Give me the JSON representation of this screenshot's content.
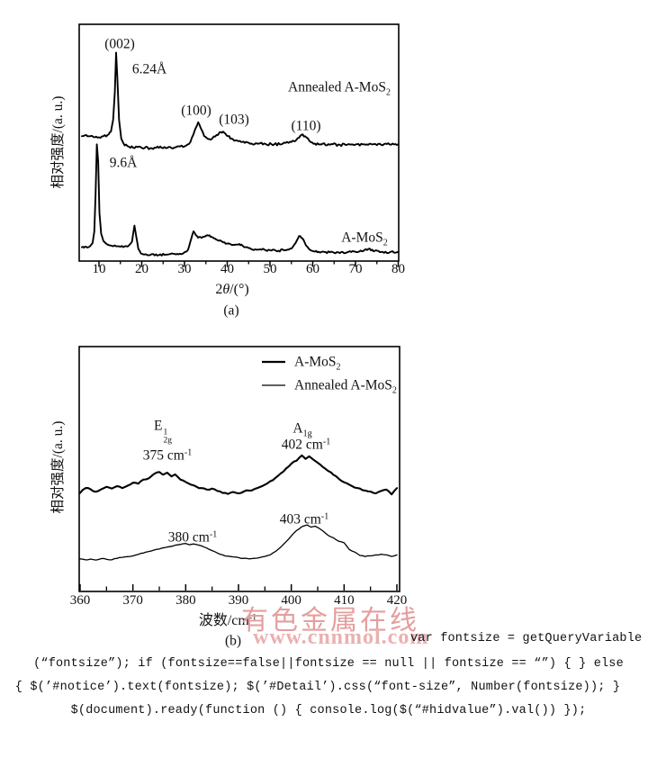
{
  "chart_a": {
    "ylabel": "相对强度/(a. u.)",
    "xlabel_prefix": "2",
    "xlabel_theta": "θ",
    "xlabel_suffix": "/(°)",
    "caption": "(a)",
    "peak_002": "(002)",
    "d_624": "6.24Å",
    "peak_100": "(100)",
    "peak_103": "(103)",
    "peak_110": "(110)",
    "d_96": "9.6Å",
    "annealed_label": "Annealed A-MoS",
    "annealed_sub": "2",
    "amos_label": "A-MoS",
    "amos_sub": "2"
  },
  "chart_b": {
    "ylabel": "相对强度/(a. u.)",
    "xlabel": "波数/cm",
    "xlabel_sup": "-1",
    "caption": "(b)",
    "legend": {
      "item1": "A-MoS",
      "item1_sub": "2",
      "item2": "Annealed A-MoS",
      "item2_sub": "2"
    },
    "e2g_base": "E",
    "e2g_sup": "1",
    "e2g_sub": "2g",
    "a1g_base": "A",
    "a1g_sub": "1g",
    "p375": "375 cm",
    "p402": "402 cm",
    "p380": "380 cm",
    "p403": "403 cm",
    "sup_minus1": "-1"
  },
  "watermark": {
    "line1": "有色金属在线",
    "line2": "www.cnnmol.com",
    "color": "#e59e9e"
  },
  "code_lines": {
    "line1": "var fontsize = getQueryVariable",
    "line2": "(“fontsize”); if (fontsize==false||fontsize == null || fontsize == “”) { } else",
    "line3": "{ $(’#notice’).text(fontsize); $(’#Detail’).css(“font-size”, Number(fontsize)); }",
    "line4": "$(document).ready(function () { console.log($(“#hidvalue”).val()) });"
  },
  "chart_data": [
    {
      "type": "line",
      "xlabel": "2θ/(°)",
      "ylabel": "相对强度/(a.u.)",
      "xlim": [
        5.4,
        80.2
      ],
      "ylim": [
        0,
        100
      ],
      "grid": false,
      "legend_position": "none",
      "x_ticks": [
        10,
        20,
        30,
        40,
        50,
        60,
        70,
        80
      ],
      "x_minor_ticks": [
        15,
        25,
        35,
        45,
        55,
        65,
        75
      ],
      "annotations": [
        "(002)",
        "6.24Å",
        "(100)",
        "(103)",
        "(110)",
        "9.6Å"
      ],
      "series": [
        {
          "name": "Annealed A-MoS₂",
          "points": [
            [
              6,
              53
            ],
            [
              7,
              53.5
            ],
            [
              8,
              53
            ],
            [
              9,
              52.5
            ],
            [
              10,
              52.5
            ],
            [
              11,
              53
            ],
            [
              12,
              53.5
            ],
            [
              12.8,
              55
            ],
            [
              13.3,
              60
            ],
            [
              13.7,
              72
            ],
            [
              14,
              89
            ],
            [
              14.3,
              78
            ],
            [
              14.7,
              60
            ],
            [
              15.2,
              52
            ],
            [
              16,
              49
            ],
            [
              17,
              48.5
            ],
            [
              18,
              48
            ],
            [
              20,
              48
            ],
            [
              22,
              47.8
            ],
            [
              24,
              48
            ],
            [
              26,
              48
            ],
            [
              28,
              48.2
            ],
            [
              30,
              48.6
            ],
            [
              31.4,
              50.5
            ],
            [
              32.4,
              55.5
            ],
            [
              33.2,
              59
            ],
            [
              33.8,
              56.5
            ],
            [
              34.6,
              53
            ],
            [
              35.5,
              51.8
            ],
            [
              36.5,
              52
            ],
            [
              37.5,
              53.5
            ],
            [
              38.5,
              54.8
            ],
            [
              39.3,
              54.5
            ],
            [
              40.2,
              53
            ],
            [
              41,
              52
            ],
            [
              42,
              51.2
            ],
            [
              43.5,
              50.5
            ],
            [
              45,
              50.2
            ],
            [
              47,
              49.8
            ],
            [
              49,
              49.6
            ],
            [
              51,
              49.5
            ],
            [
              53,
              49.8
            ],
            [
              55,
              50.5
            ],
            [
              56.2,
              51.5
            ],
            [
              57.4,
              53.6
            ],
            [
              58.2,
              53
            ],
            [
              59.2,
              51
            ],
            [
              60.5,
              49.8
            ],
            [
              62,
              49.4
            ],
            [
              64,
              49.3
            ],
            [
              66,
              49.4
            ],
            [
              68,
              49.3
            ],
            [
              70,
              49.4
            ],
            [
              72,
              49.5
            ],
            [
              74,
              49.4
            ],
            [
              76,
              49.3
            ],
            [
              78,
              49.4
            ],
            [
              80,
              49.5
            ]
          ]
        },
        {
          "name": "A-MoS₂",
          "points": [
            [
              6,
              5.2
            ],
            [
              6.5,
              5
            ],
            [
              7,
              5.4
            ],
            [
              7.5,
              5.2
            ],
            [
              8,
              5.8
            ],
            [
              8.5,
              7
            ],
            [
              8.9,
              12
            ],
            [
              9.2,
              28
            ],
            [
              9.5,
              49.5
            ],
            [
              9.8,
              42
            ],
            [
              10.1,
              20
            ],
            [
              10.5,
              11
            ],
            [
              11,
              8
            ],
            [
              11.5,
              7
            ],
            [
              12,
              6.3
            ],
            [
              13,
              5.8
            ],
            [
              14,
              5.6
            ],
            [
              15,
              5.4
            ],
            [
              16,
              5.6
            ],
            [
              17,
              6
            ],
            [
              17.7,
              7.5
            ],
            [
              18.3,
              14.5
            ],
            [
              18.7,
              10
            ],
            [
              19.2,
              4.5
            ],
            [
              19.8,
              2.5
            ],
            [
              20.5,
              2
            ],
            [
              22,
              1.9
            ],
            [
              24,
              1.8
            ],
            [
              26,
              2
            ],
            [
              28,
              2.1
            ],
            [
              29.5,
              2.3
            ],
            [
              30.8,
              4
            ],
            [
              31.6,
              9
            ],
            [
              32.1,
              12
            ],
            [
              32.6,
              10.5
            ],
            [
              33.2,
              9.3
            ],
            [
              34,
              9.2
            ],
            [
              34.8,
              9.8
            ],
            [
              35.6,
              10.2
            ],
            [
              36.4,
              9.6
            ],
            [
              37.2,
              8.8
            ],
            [
              38,
              8
            ],
            [
              39,
              7.3
            ],
            [
              40,
              6.8
            ],
            [
              41,
              6.2
            ],
            [
              42,
              6.3
            ],
            [
              42.8,
              6.6
            ],
            [
              43.6,
              5.8
            ],
            [
              45,
              4.8
            ],
            [
              46.5,
              4.3
            ],
            [
              48,
              4.1
            ],
            [
              50,
              3.9
            ],
            [
              52,
              3.7
            ],
            [
              53.5,
              3.9
            ],
            [
              55,
              4.6
            ],
            [
              56,
              7
            ],
            [
              56.8,
              10
            ],
            [
              57.6,
              9
            ],
            [
              58.4,
              6
            ],
            [
              59.4,
              4
            ],
            [
              60.5,
              3.3
            ],
            [
              62,
              3.1
            ],
            [
              64,
              3
            ],
            [
              66,
              3
            ],
            [
              68,
              3
            ],
            [
              70,
              3.2
            ],
            [
              71.5,
              3.4
            ],
            [
              73,
              4.4
            ],
            [
              74.5,
              3.6
            ],
            [
              76,
              3.1
            ],
            [
              78,
              3
            ],
            [
              80,
              3.2
            ]
          ]
        }
      ]
    },
    {
      "type": "line",
      "xlabel": "波数/cm⁻¹",
      "ylabel": "相对强度/(a.u.)",
      "xlim": [
        359.8,
        420.6
      ],
      "ylim": [
        0,
        100
      ],
      "grid": false,
      "legend_position": "upper right",
      "x_ticks": [
        360,
        370,
        380,
        390,
        400,
        410,
        420
      ],
      "x_minor_ticks": [
        365,
        375,
        385,
        395,
        405,
        415
      ],
      "annotations": [
        "E¹₂g",
        "375 cm⁻¹",
        "A₁g",
        "402 cm⁻¹",
        "380 cm⁻¹",
        "403 cm⁻¹"
      ],
      "series": [
        {
          "name": "A-MoS₂",
          "points": [
            [
              360,
              40
            ],
            [
              361,
              42
            ],
            [
              362,
              41.5
            ],
            [
              363,
              40.5
            ],
            [
              364,
              41.5
            ],
            [
              365,
              42.5
            ],
            [
              366,
              41.8
            ],
            [
              367,
              42.8
            ],
            [
              368,
              42
            ],
            [
              369,
              43
            ],
            [
              370,
              44.2
            ],
            [
              371,
              43.8
            ],
            [
              372,
              45.5
            ],
            [
              373,
              46
            ],
            [
              374,
              47.8
            ],
            [
              375,
              48.6
            ],
            [
              375.7,
              47.5
            ],
            [
              376.5,
              48.3
            ],
            [
              377.3,
              46.8
            ],
            [
              378,
              47.6
            ],
            [
              379,
              45.5
            ],
            [
              380,
              44.5
            ],
            [
              381,
              43.4
            ],
            [
              382,
              42.6
            ],
            [
              383,
              42
            ],
            [
              384,
              41.4
            ],
            [
              385,
              41.8
            ],
            [
              386,
              40.8
            ],
            [
              387,
              40
            ],
            [
              388,
              39.6
            ],
            [
              389,
              40.4
            ],
            [
              390,
              39.8
            ],
            [
              391,
              40.6
            ],
            [
              392,
              41
            ],
            [
              393,
              41.6
            ],
            [
              394,
              42.4
            ],
            [
              395,
              43.4
            ],
            [
              396,
              44.8
            ],
            [
              397,
              46.2
            ],
            [
              398,
              48
            ],
            [
              399,
              50
            ],
            [
              400,
              52
            ],
            [
              401,
              53.2
            ],
            [
              402,
              55.4
            ],
            [
              402.7,
              54
            ],
            [
              403.4,
              55
            ],
            [
              404.2,
              53.6
            ],
            [
              405,
              52.4
            ],
            [
              406,
              50.6
            ],
            [
              407,
              49
            ],
            [
              408,
              47.4
            ],
            [
              409,
              45.8
            ],
            [
              410,
              44.4
            ],
            [
              411,
              43.4
            ],
            [
              412,
              42.2
            ],
            [
              413,
              41.8
            ],
            [
              414,
              41
            ],
            [
              415,
              40.6
            ],
            [
              416,
              39.8
            ],
            [
              417,
              40.8
            ],
            [
              418,
              41.4
            ],
            [
              419,
              39.4
            ],
            [
              420,
              42
            ]
          ]
        },
        {
          "name": "Annealed A-MoS₂",
          "points": [
            [
              360,
              13
            ],
            [
              361,
              12.6
            ],
            [
              362,
              12.9
            ],
            [
              363,
              12.5
            ],
            [
              364,
              13.1
            ],
            [
              365,
              12.8
            ],
            [
              366,
              12.6
            ],
            [
              367,
              13.2
            ],
            [
              368,
              13.6
            ],
            [
              369,
              13.9
            ],
            [
              370,
              14.2
            ],
            [
              371,
              14.8
            ],
            [
              372,
              15.4
            ],
            [
              373,
              16
            ],
            [
              374,
              16.6
            ],
            [
              375,
              17
            ],
            [
              376,
              17.6
            ],
            [
              377,
              18
            ],
            [
              378,
              18.6
            ],
            [
              379,
              18.9
            ],
            [
              380,
              19.3
            ],
            [
              380.7,
              18.8
            ],
            [
              381.5,
              19.1
            ],
            [
              382.3,
              18.7
            ],
            [
              383,
              18.3
            ],
            [
              384,
              17.4
            ],
            [
              385,
              16.4
            ],
            [
              386,
              15.4
            ],
            [
              387,
              14.6
            ],
            [
              388,
              14.1
            ],
            [
              389,
              13.8
            ],
            [
              390,
              13.5
            ],
            [
              391,
              13.2
            ],
            [
              392,
              13
            ],
            [
              393,
              13.2
            ],
            [
              394,
              13.5
            ],
            [
              395,
              14
            ],
            [
              396,
              14.6
            ],
            [
              397,
              16
            ],
            [
              398,
              17.8
            ],
            [
              399,
              20
            ],
            [
              400,
              22.4
            ],
            [
              401,
              24.6
            ],
            [
              402,
              26.2
            ],
            [
              403,
              26.9
            ],
            [
              403.7,
              26
            ],
            [
              404.5,
              26.4
            ],
            [
              405.2,
              25.6
            ],
            [
              406,
              24.4
            ],
            [
              407,
              22.6
            ],
            [
              408,
              21.6
            ],
            [
              409,
              20.2
            ],
            [
              410,
              19.6
            ],
            [
              411,
              16.8
            ],
            [
              412,
              15.8
            ],
            [
              413,
              14.4
            ],
            [
              414,
              13.9
            ],
            [
              415,
              14.2
            ],
            [
              416,
              14.6
            ],
            [
              417,
              14.9
            ],
            [
              418,
              14.6
            ],
            [
              419,
              14
            ],
            [
              420,
              14.6
            ]
          ]
        }
      ]
    }
  ]
}
